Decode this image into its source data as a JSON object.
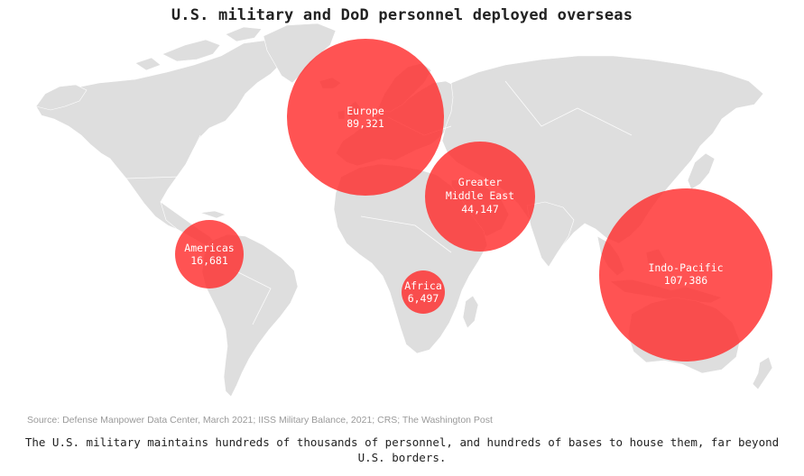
{
  "title": "U.S. military and DoD personnel deployed overseas",
  "regions": [
    {
      "name": "Europe",
      "value": "89,321"
    },
    {
      "name": "Greater Middle East",
      "line1": "Greater",
      "line2": "Middle East",
      "value": "44,147"
    },
    {
      "name": "Americas",
      "value": "16,681"
    },
    {
      "name": "Africa",
      "value": "6,497"
    },
    {
      "name": "Indo-Pacific",
      "value": "107,386"
    }
  ],
  "source": "Source: Defense Manpower Data Center, March 2021; IISS Military Balance, 2021; CRS; The Washington Post",
  "caption": "The U.S. military maintains hundreds of thousands of personnel, and hundreds of bases to house them, far beyond U.S. borders.",
  "colors": {
    "bubble": "#ff2d2d",
    "land": "#dedede",
    "text": "#222222",
    "source": "#9a9a9a"
  }
}
